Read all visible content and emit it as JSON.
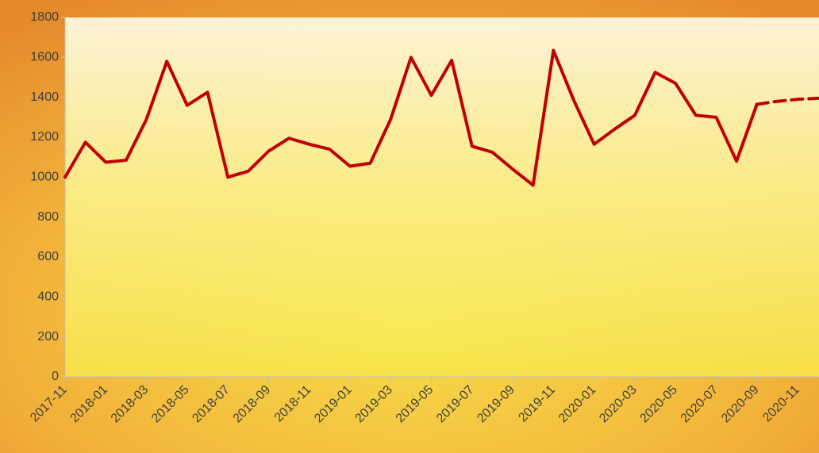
{
  "chart_data": {
    "type": "line",
    "x": [
      "2017-11",
      null,
      "2018-01",
      null,
      "2018-03",
      null,
      "2018-05",
      null,
      "2018-07",
      null,
      "2018-09",
      null,
      "2018-11",
      null,
      "2019-01",
      null,
      "2019-03",
      null,
      "2019-05",
      null,
      "2019-07",
      null,
      "2019-09",
      null,
      "2019-11",
      null,
      "2020-01",
      null,
      "2020-03",
      null,
      "2020-05",
      null,
      "2020-07",
      null,
      "2020-09",
      null,
      "2020-11",
      null
    ],
    "series": [
      {
        "color": "#c00000",
        "dashed": false,
        "values": [
          1000,
          1175,
          1075,
          1085,
          1290,
          1580,
          1360,
          1425,
          1000,
          1030,
          1130,
          1195,
          1165,
          1140,
          1055,
          1070,
          1290,
          1600,
          1410,
          1585,
          1155,
          1125,
          1040,
          960,
          1635,
          1385,
          1165,
          1240,
          1310,
          1525,
          1470,
          1310,
          1300,
          1080,
          1365,
          null,
          null,
          null
        ]
      },
      {
        "color": "#c00000",
        "dashed": true,
        "values": [
          null,
          null,
          null,
          null,
          null,
          null,
          null,
          null,
          null,
          null,
          null,
          null,
          null,
          null,
          null,
          null,
          null,
          null,
          null,
          null,
          null,
          null,
          null,
          null,
          null,
          null,
          null,
          null,
          null,
          null,
          null,
          null,
          null,
          null,
          1365,
          1380,
          1390,
          1395
        ]
      }
    ],
    "ylim": [
      0,
      1800
    ],
    "yticks": [
      0,
      200,
      400,
      600,
      800,
      1000,
      1200,
      1400,
      1600,
      1800
    ],
    "grid": false
  }
}
